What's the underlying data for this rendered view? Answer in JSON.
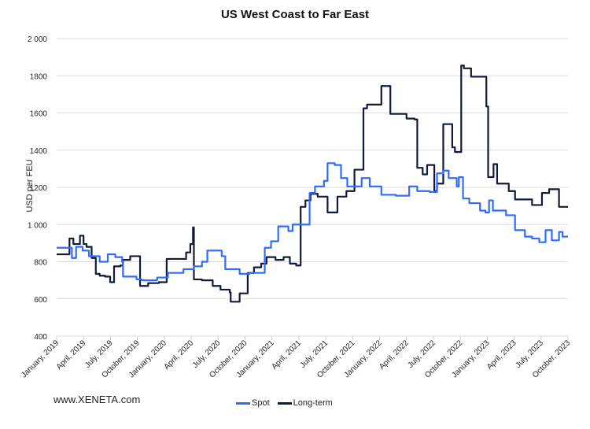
{
  "chart_data": {
    "type": "line",
    "title": "US West Coast to Far East",
    "ylabel": "USD per FEU",
    "xlabel": "",
    "ylim": [
      400,
      2000
    ],
    "yticks": [
      "2 000",
      "1800",
      "1600",
      "1400",
      "1200",
      "1 000",
      "800",
      "600",
      "400"
    ],
    "ytick_values": [
      2000,
      1800,
      1600,
      1400,
      1200,
      1000,
      800,
      600,
      400
    ],
    "xlim": [
      "2019-01-01",
      "2023-10-01"
    ],
    "xticks": [
      "January, 2019",
      "April, 2019",
      "July, 2019",
      "October, 2019",
      "January, 2020",
      "April, 2020",
      "July, 2020",
      "October, 2020",
      "January, 2021",
      "April, 2021",
      "July, 2021",
      "October, 2021",
      "January, 2022",
      "April, 2022",
      "July, 2022",
      "October, 2022",
      "January, 2023",
      "April, 2023",
      "July, 2023",
      "October, 2023"
    ],
    "grid": "horizontal",
    "legend_position": "bottom",
    "series": [
      {
        "name": "Spot",
        "color": "#2f6bff",
        "points": [
          [
            "2019-01-01",
            875
          ],
          [
            "2019-02-22",
            820
          ],
          [
            "2019-03-06",
            880
          ],
          [
            "2019-03-28",
            860
          ],
          [
            "2019-04-19",
            830
          ],
          [
            "2019-05-25",
            800
          ],
          [
            "2019-06-22",
            840
          ],
          [
            "2019-07-17",
            825
          ],
          [
            "2019-08-10",
            800
          ],
          [
            "2019-08-13",
            720
          ],
          [
            "2019-09-28",
            705
          ],
          [
            "2019-10-16",
            700
          ],
          [
            "2019-12-07",
            715
          ],
          [
            "2020-01-13",
            740
          ],
          [
            "2020-03-05",
            760
          ],
          [
            "2020-04-10",
            775
          ],
          [
            "2020-05-07",
            800
          ],
          [
            "2020-05-25",
            860
          ],
          [
            "2020-07-13",
            830
          ],
          [
            "2020-07-25",
            760
          ],
          [
            "2020-09-13",
            735
          ],
          [
            "2020-10-16",
            740
          ],
          [
            "2020-12-07",
            875
          ],
          [
            "2020-12-28",
            910
          ],
          [
            "2021-01-22",
            990
          ],
          [
            "2021-02-26",
            965
          ],
          [
            "2021-03-10",
            1000
          ],
          [
            "2021-04-10",
            1000
          ],
          [
            "2021-05-07",
            1170
          ],
          [
            "2021-05-25",
            1205
          ],
          [
            "2021-06-25",
            1235
          ],
          [
            "2021-07-07",
            1330
          ],
          [
            "2021-08-01",
            1320
          ],
          [
            "2021-08-22",
            1250
          ],
          [
            "2021-09-13",
            1205
          ],
          [
            "2021-11-01",
            1250
          ],
          [
            "2021-11-28",
            1205
          ],
          [
            "2022-01-07",
            1160
          ],
          [
            "2022-02-25",
            1155
          ],
          [
            "2022-04-10",
            1205
          ],
          [
            "2022-05-07",
            1180
          ],
          [
            "2022-06-19",
            1175
          ],
          [
            "2022-07-13",
            1275
          ],
          [
            "2022-08-04",
            1290
          ],
          [
            "2022-08-22",
            1250
          ],
          [
            "2022-09-19",
            1205
          ],
          [
            "2022-09-26",
            1255
          ],
          [
            "2022-10-10",
            1140
          ],
          [
            "2022-11-01",
            1115
          ],
          [
            "2022-12-07",
            1075
          ],
          [
            "2022-12-25",
            1065
          ],
          [
            "2023-01-07",
            1130
          ],
          [
            "2023-01-20",
            1075
          ],
          [
            "2023-03-04",
            1050
          ],
          [
            "2023-04-04",
            970
          ],
          [
            "2023-05-07",
            935
          ],
          [
            "2023-06-01",
            925
          ],
          [
            "2023-06-25",
            905
          ],
          [
            "2023-07-16",
            970
          ],
          [
            "2023-08-07",
            915
          ],
          [
            "2023-09-01",
            960
          ],
          [
            "2023-09-13",
            935
          ],
          [
            "2023-10-01",
            935
          ]
        ]
      },
      {
        "name": "Long-term",
        "color": "#111a3a",
        "points": [
          [
            "2019-01-01",
            840
          ],
          [
            "2019-02-14",
            925
          ],
          [
            "2019-02-27",
            895
          ],
          [
            "2019-03-19",
            940
          ],
          [
            "2019-04-01",
            895
          ],
          [
            "2019-04-11",
            880
          ],
          [
            "2019-04-28",
            820
          ],
          [
            "2019-05-12",
            735
          ],
          [
            "2019-05-25",
            725
          ],
          [
            "2019-06-13",
            720
          ],
          [
            "2019-06-30",
            690
          ],
          [
            "2019-07-13",
            775
          ],
          [
            "2019-08-04",
            780
          ],
          [
            "2019-08-13",
            810
          ],
          [
            "2019-09-07",
            830
          ],
          [
            "2019-10-10",
            670
          ],
          [
            "2019-11-07",
            685
          ],
          [
            "2019-12-13",
            690
          ],
          [
            "2020-01-09",
            815
          ],
          [
            "2020-03-14",
            850
          ],
          [
            "2020-03-28",
            895
          ],
          [
            "2020-04-07",
            985
          ],
          [
            "2020-04-10",
            705
          ],
          [
            "2020-05-07",
            700
          ],
          [
            "2020-06-13",
            670
          ],
          [
            "2020-07-09",
            650
          ],
          [
            "2020-08-10",
            635
          ],
          [
            "2020-08-13",
            585
          ],
          [
            "2020-09-13",
            630
          ],
          [
            "2020-10-10",
            740
          ],
          [
            "2020-11-01",
            770
          ],
          [
            "2020-11-25",
            790
          ],
          [
            "2020-12-13",
            825
          ],
          [
            "2021-01-13",
            810
          ],
          [
            "2021-02-10",
            825
          ],
          [
            "2021-03-01",
            790
          ],
          [
            "2021-03-22",
            780
          ],
          [
            "2021-04-07",
            1095
          ],
          [
            "2021-04-23",
            1130
          ],
          [
            "2021-05-10",
            1165
          ],
          [
            "2021-06-04",
            1150
          ],
          [
            "2021-07-07",
            1065
          ],
          [
            "2021-08-10",
            1150
          ],
          [
            "2021-09-10",
            1180
          ],
          [
            "2021-10-07",
            1295
          ],
          [
            "2021-11-07",
            1625
          ],
          [
            "2021-11-19",
            1645
          ],
          [
            "2022-01-07",
            1745
          ],
          [
            "2022-02-07",
            1595
          ],
          [
            "2022-04-01",
            1570
          ],
          [
            "2022-04-28",
            1565
          ],
          [
            "2022-05-07",
            1305
          ],
          [
            "2022-05-25",
            1270
          ],
          [
            "2022-06-10",
            1320
          ],
          [
            "2022-07-04",
            1180
          ],
          [
            "2022-07-13",
            1220
          ],
          [
            "2022-08-04",
            1540
          ],
          [
            "2022-09-04",
            1415
          ],
          [
            "2022-09-13",
            1390
          ],
          [
            "2022-10-04",
            1855
          ],
          [
            "2022-10-13",
            1840
          ],
          [
            "2022-11-07",
            1795
          ],
          [
            "2022-12-28",
            1635
          ],
          [
            "2023-01-04",
            1255
          ],
          [
            "2023-01-22",
            1325
          ],
          [
            "2023-02-04",
            1220
          ],
          [
            "2023-03-13",
            1180
          ],
          [
            "2023-04-04",
            1135
          ],
          [
            "2023-06-01",
            1105
          ],
          [
            "2023-07-04",
            1170
          ],
          [
            "2023-07-28",
            1190
          ],
          [
            "2023-09-01",
            1095
          ],
          [
            "2023-10-01",
            1095
          ]
        ]
      }
    ]
  },
  "footer": {
    "source": "www.XENETA.com"
  },
  "legend": {
    "items": [
      "Spot",
      "Long-term"
    ]
  }
}
